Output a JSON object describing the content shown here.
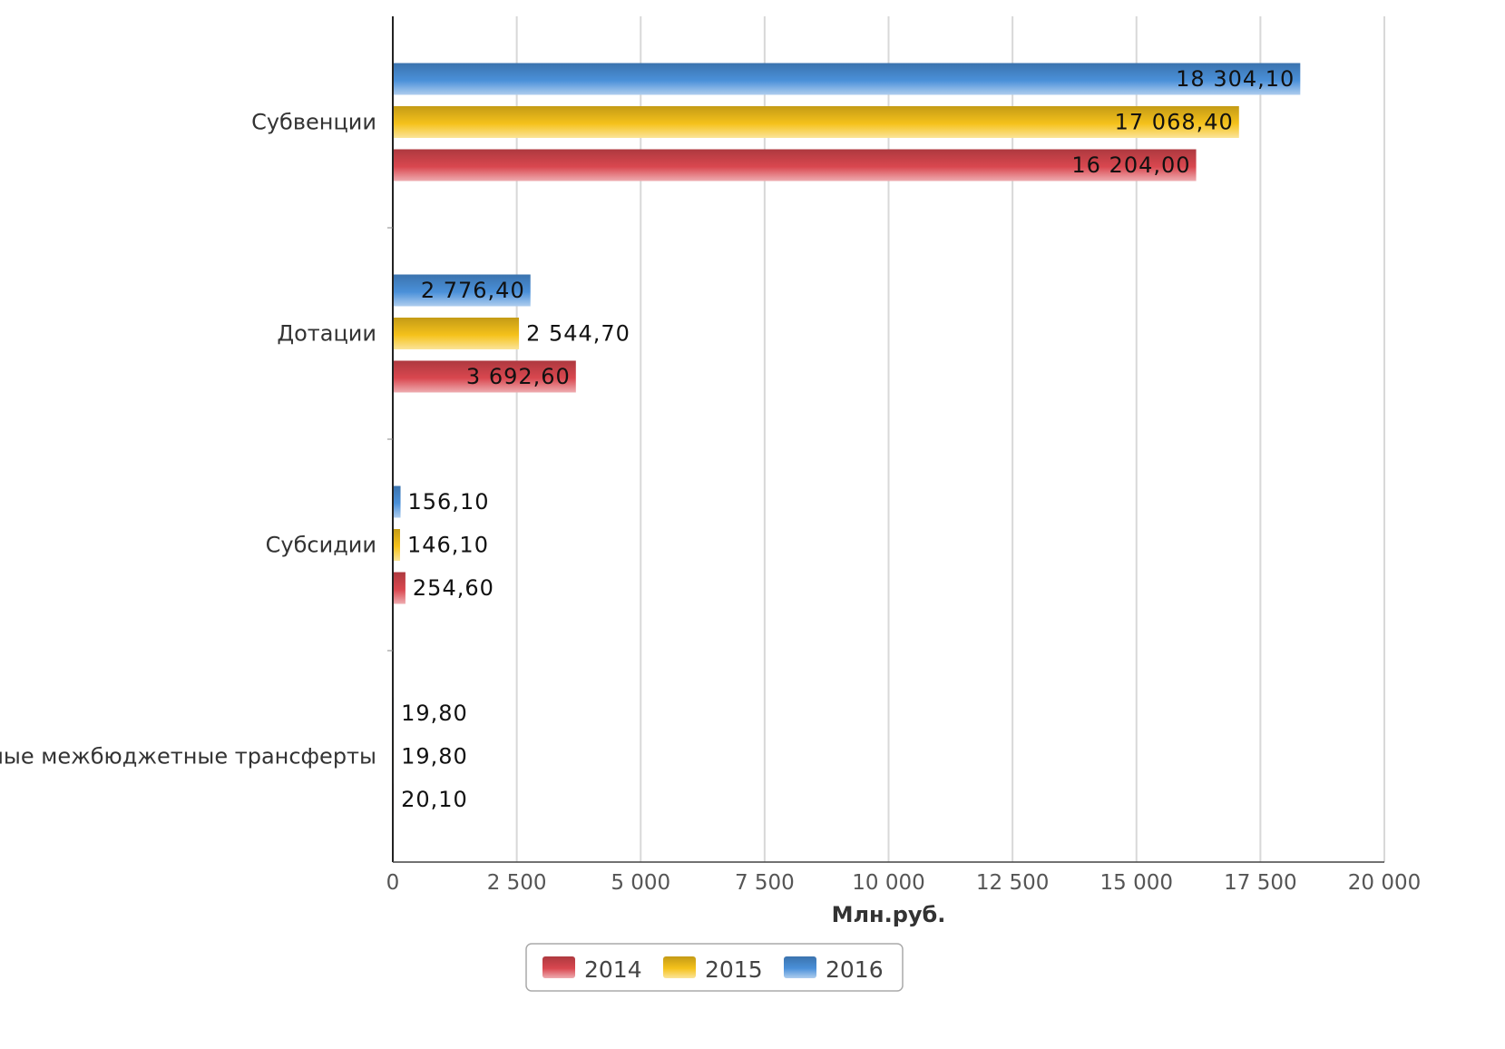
{
  "chart_data": {
    "type": "bar",
    "orientation": "horizontal",
    "title": "",
    "xlabel": "Млн.руб.",
    "ylabel": "",
    "xlim": [
      0,
      20000
    ],
    "grid": true,
    "legend_position": "bottom-center",
    "categories": [
      "Субвенции",
      "Дотации",
      "Субсидии",
      "Иные межбюджетные трансферты"
    ],
    "x_ticks": [
      "0",
      "2 500",
      "5 000",
      "7 500",
      "10 000",
      "12 500",
      "15 000",
      "17 500",
      "20 000"
    ],
    "series": [
      {
        "name": "2016",
        "color": "#4a90d9",
        "values": [
          18304.1,
          2776.4,
          156.1,
          19.8
        ],
        "labels": [
          "18 304,10",
          "2 776,40",
          "156,10",
          "19,80"
        ]
      },
      {
        "name": "2015",
        "color": "#f5c21b",
        "values": [
          17068.4,
          2544.7,
          146.1,
          19.8
        ],
        "labels": [
          "17 068,40",
          "2 544,70",
          "146,10",
          "19,80"
        ]
      },
      {
        "name": "2014",
        "color": "#d9474f",
        "values": [
          16204.0,
          3692.6,
          254.6,
          20.1
        ],
        "labels": [
          "16 204,00",
          "3 692,60",
          "254,60",
          "20,10"
        ]
      }
    ],
    "legend": [
      {
        "name": "2014",
        "color": "#d9474f"
      },
      {
        "name": "2015",
        "color": "#f5c21b"
      },
      {
        "name": "2016",
        "color": "#4a90d9"
      }
    ]
  }
}
